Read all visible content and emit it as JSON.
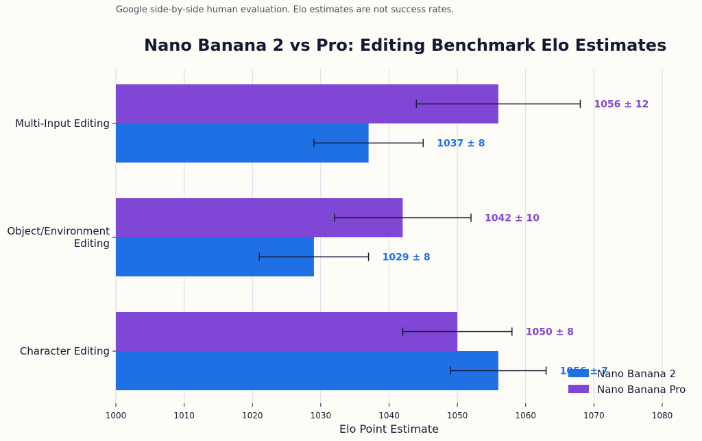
{
  "subtitle": "Google side-by-side human evaluation. Elo estimates are not success rates.",
  "chart_data": {
    "type": "bar",
    "orientation": "horizontal",
    "title": "Nano Banana 2 vs Pro: Editing Benchmark Elo Estimates",
    "xlabel": "Elo Point Estimate",
    "ylabel": "",
    "xlim": [
      1000,
      1080
    ],
    "x_ticks": [
      1000,
      1010,
      1020,
      1030,
      1040,
      1050,
      1060,
      1070,
      1080
    ],
    "grid": "vertical",
    "legend_position": "bottom-right",
    "categories": [
      "Multi-Input Editing",
      "Object/Environment Editing",
      "Character Editing"
    ],
    "category_lines": [
      [
        "Multi-Input Editing"
      ],
      [
        "Object/Environment",
        "Editing"
      ],
      [
        "Character Editing"
      ]
    ],
    "series": [
      {
        "name": "Nano Banana 2",
        "color": "#1f6fe5",
        "values": [
          1037,
          1029,
          1056
        ],
        "errors": [
          8,
          8,
          7
        ],
        "labels": [
          "1037 ± 8",
          "1029 ± 8",
          "1056 ± 7"
        ]
      },
      {
        "name": "Nano Banana Pro",
        "color": "#8047d6",
        "values": [
          1056,
          1042,
          1050
        ],
        "errors": [
          12,
          10,
          8
        ],
        "labels": [
          "1056 ± 12",
          "1042 ± 10",
          "1050 ± 8"
        ]
      }
    ],
    "error_bar_color": "#141a33",
    "grid_color": "#d6d9ea",
    "text_color": "#141a33"
  }
}
